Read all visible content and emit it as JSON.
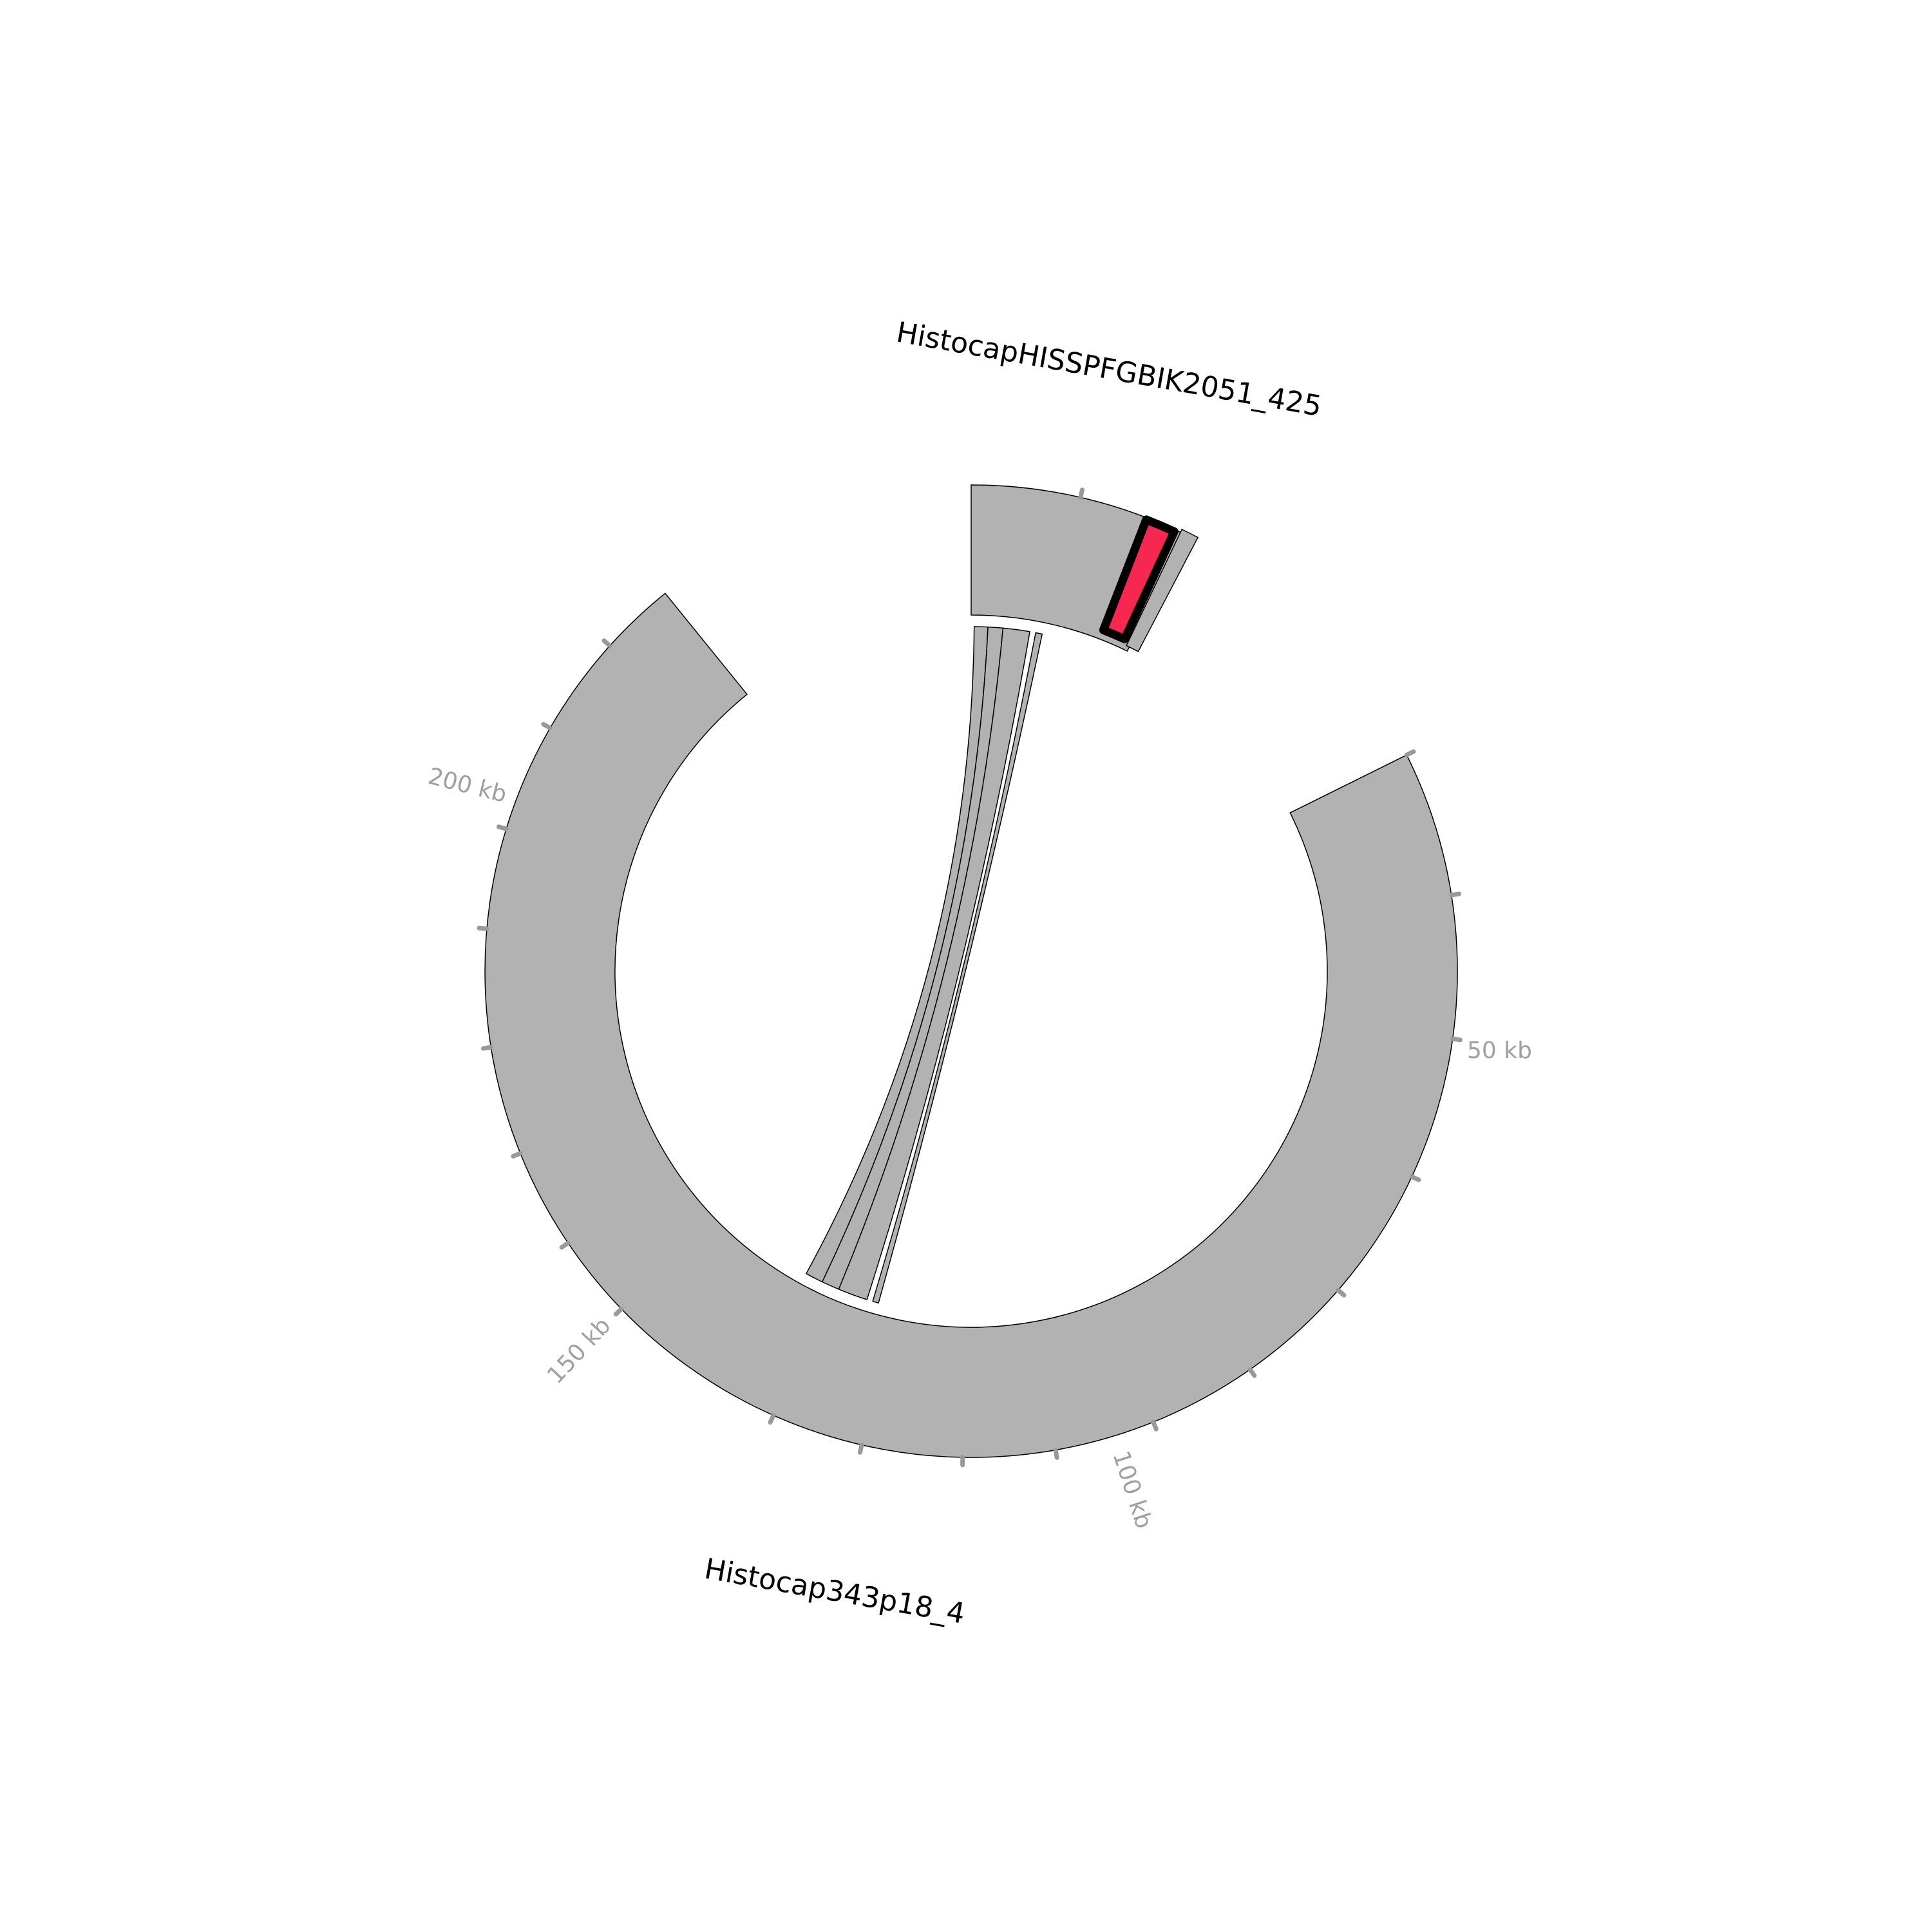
{
  "segments": [
    {
      "id": "seg-a",
      "label": "HistocapHISSPFGBIK2051_425"
    },
    {
      "id": "seg-b",
      "label": "Histocap343p18_4"
    }
  ],
  "tick_labels": [
    "50 kb",
    "100 kb",
    "150 kb",
    "200 kb"
  ],
  "colors": {
    "segment_fill": "#b2b2b2",
    "link_fill": "#b2b2b2",
    "highlight_fill": "#f62750",
    "highlight_stroke": "#000000",
    "tick_color": "#999999",
    "tick_label_color": "#a0a0a0",
    "outline": "#000000"
  }
}
